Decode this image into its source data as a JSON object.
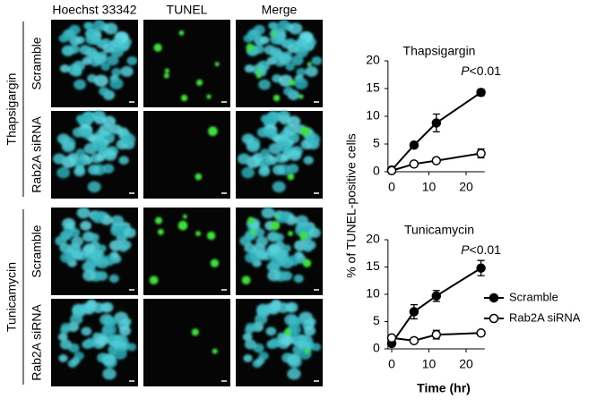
{
  "panel": {
    "columns": [
      "Hoechst 33342",
      "TUNEL",
      "Merge"
    ],
    "groups": [
      {
        "label": "Thapsigargin",
        "rows": [
          "Scramble",
          "Rab2A siRNA"
        ]
      },
      {
        "label": "Tunicamycin",
        "rows": [
          "Scramble",
          "Rab2A siRNA"
        ]
      }
    ]
  },
  "ylabel": "% of TUNEL-positive cells",
  "chart_data": [
    {
      "type": "line",
      "title": "Thapsigargin",
      "annotation": [
        "P",
        "<0.01"
      ],
      "x": [
        0,
        6,
        12,
        24
      ],
      "xlim": [
        -1,
        25
      ],
      "xticks": [
        0,
        10,
        20
      ],
      "ylim": [
        0,
        20
      ],
      "yticks": [
        0,
        5,
        10,
        15,
        20
      ],
      "series": [
        {
          "color": "#000000",
          "marker": "filled",
          "values": [
            0.3,
            4.8,
            8.8,
            14.3
          ],
          "errors": [
            0.3,
            0.5,
            1.6,
            0.6
          ]
        },
        {
          "color": "#000000",
          "marker": "open",
          "values": [
            0.2,
            1.4,
            2.0,
            3.3
          ],
          "errors": [
            0.1,
            0.2,
            0.3,
            0.8
          ]
        }
      ]
    },
    {
      "type": "line",
      "title": "Tunicamycin",
      "annotation": [
        "P",
        "<0.01"
      ],
      "xlabel": "Time (hr)",
      "legend": "right",
      "x": [
        0,
        6,
        12,
        24
      ],
      "xlim": [
        -1,
        25
      ],
      "xticks": [
        0,
        10,
        20
      ],
      "ylim": [
        0,
        20
      ],
      "yticks": [
        0,
        5,
        10,
        15,
        20
      ],
      "series": [
        {
          "name": "Scramble",
          "color": "#000000",
          "marker": "filled",
          "values": [
            1.0,
            6.8,
            9.7,
            14.8
          ],
          "errors": [
            0.5,
            1.3,
            1.0,
            1.4
          ]
        },
        {
          "name": "Rab2A siRNA",
          "color": "#000000",
          "marker": "open",
          "values": [
            2.0,
            1.5,
            2.6,
            2.9
          ],
          "errors": [
            0.3,
            0.2,
            0.8,
            0.3
          ]
        }
      ]
    }
  ]
}
